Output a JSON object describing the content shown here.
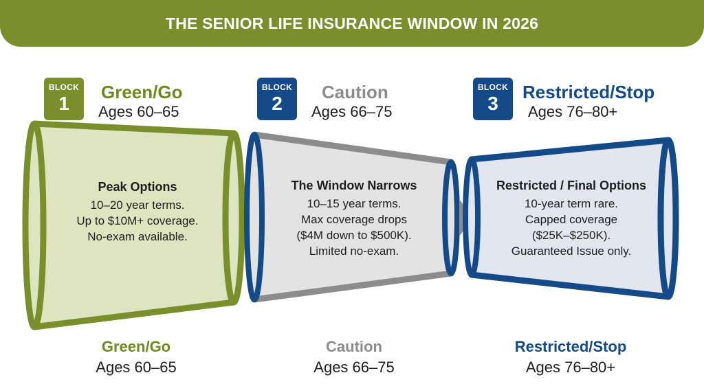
{
  "banner": {
    "title": "THE SENIOR LIFE INSURANCE WINDOW IN 2026"
  },
  "colors": {
    "green": "#7a8f2c",
    "blue": "#154a88",
    "gray": "#8c8c8c"
  },
  "blocks": [
    {
      "badge_label": "BLOCK",
      "number": "1",
      "title": "Green/Go",
      "ages": "Ages 60–65",
      "panel_title": "Peak Options",
      "lines": [
        "10–20 year terms.",
        "Up to $10M+ coverage.",
        "No-exam available."
      ],
      "footer_title": "Green/Go",
      "footer_ages": "Ages 60–65"
    },
    {
      "badge_label": "BLOCK",
      "number": "2",
      "title": "Caution",
      "ages": "Ages 66–75",
      "panel_title": "The Window Narrows",
      "lines": [
        "10–15 year terms.",
        "Max coverage drops",
        "($4M down to $500K).",
        "Limited no-exam."
      ],
      "footer_title": "Caution",
      "footer_ages": "Ages 66–75"
    },
    {
      "badge_label": "BLOCK",
      "number": "3",
      "title": "Restricted/Stop",
      "ages": "Ages 76–80+",
      "panel_title": "Restricted / Final Options",
      "lines": [
        "10-year term rare.",
        "Capped coverage",
        "($25K–$250K).",
        "Guaranteed Issue only."
      ],
      "footer_title": "Restricted/Stop",
      "footer_ages": "Ages 76–80+"
    }
  ]
}
